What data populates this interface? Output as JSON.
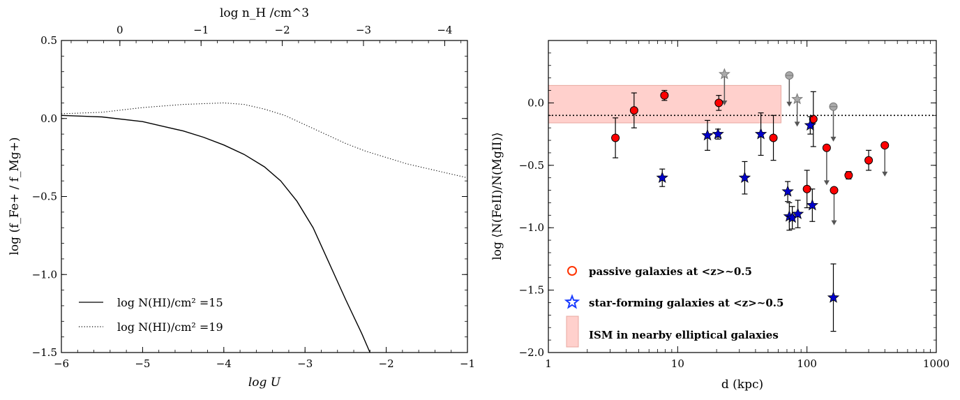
{
  "chart_data": [
    {
      "type": "line",
      "xlabel": "log U",
      "ylabel": "log (f_Fe+ / f_Mg+)",
      "top_xlabel": "log n_H /cm^3",
      "xlim": [
        -6,
        -1
      ],
      "ylim": [
        -1.5,
        0.5
      ],
      "xticks": [
        "−6",
        "−5",
        "−4",
        "−3",
        "−2",
        "−1"
      ],
      "yticks": [
        "−1.5",
        "−1.0",
        "−0.5",
        "0.0",
        "0.5"
      ],
      "top_xticks": [
        {
          "label": "0",
          "at": -5.28
        },
        {
          "label": "−1",
          "at": -4.28
        },
        {
          "label": "−2",
          "at": -3.28
        },
        {
          "label": "−3",
          "at": -2.28
        },
        {
          "label": "−4",
          "at": -1.28
        }
      ],
      "legend_position": "lower-left",
      "series": [
        {
          "name": "log N(HI)/cm² =15",
          "style": "solid",
          "x": [
            -6.0,
            -5.5,
            -5.0,
            -4.75,
            -4.5,
            -4.25,
            -4.0,
            -3.75,
            -3.5,
            -3.3,
            -3.1,
            -2.9,
            -2.7,
            -2.5,
            -2.3,
            -2.2
          ],
          "y": [
            0.02,
            0.01,
            -0.02,
            -0.05,
            -0.08,
            -0.12,
            -0.17,
            -0.23,
            -0.31,
            -0.4,
            -0.53,
            -0.7,
            -0.93,
            -1.16,
            -1.38,
            -1.5
          ]
        },
        {
          "name": "log N(HI)/cm² =19",
          "style": "dotted",
          "x": [
            -6.0,
            -5.5,
            -5.0,
            -4.5,
            -4.0,
            -3.75,
            -3.5,
            -3.25,
            -3.0,
            -2.75,
            -2.5,
            -2.25,
            -2.0,
            -1.75,
            -1.5,
            -1.25,
            -1.0
          ],
          "y": [
            0.03,
            0.04,
            0.07,
            0.09,
            0.1,
            0.09,
            0.06,
            0.02,
            -0.04,
            -0.1,
            -0.16,
            -0.21,
            -0.25,
            -0.29,
            -0.32,
            -0.35,
            -0.38
          ]
        }
      ]
    },
    {
      "type": "scatter",
      "xlabel": "d (kpc)",
      "ylabel": "log ⟨N(FeII)/N(MgII)⟩",
      "x_scale": "log",
      "xlim": [
        1,
        1000
      ],
      "ylim": [
        -2.0,
        0.5
      ],
      "xticks": [
        "1",
        "10",
        "100",
        "1000"
      ],
      "yticks": [
        "−2.0",
        "−1.5",
        "−1.0",
        "−0.5",
        "0.0"
      ],
      "reference_line_y": -0.1,
      "ism_band": {
        "x": [
          1,
          63
        ],
        "y": [
          -0.16,
          0.14
        ]
      },
      "legend_position": "lower-left",
      "legend": [
        {
          "key": "passive",
          "label": "passive galaxies at <z>~0.5"
        },
        {
          "key": "sf",
          "label": "star-forming galaxies at <z>~0.5"
        },
        {
          "key": "ism",
          "label": "ISM in nearby elliptical galaxies"
        }
      ],
      "colors": {
        "passive": "#ff0000",
        "sf": "#0000cc",
        "upper": "#999999",
        "band": "#ffd0cc"
      },
      "passive_points": [
        {
          "x": 3.3,
          "y": -0.28,
          "err": [
            0.16,
            0.16
          ]
        },
        {
          "x": 4.6,
          "y": -0.06,
          "err": [
            0.14,
            0.14
          ]
        },
        {
          "x": 7.9,
          "y": 0.06,
          "err": [
            0.04,
            0.04
          ]
        },
        {
          "x": 20.8,
          "y": 0.0,
          "err": [
            0.06,
            0.06
          ]
        },
        {
          "x": 55,
          "y": -0.28,
          "err": [
            0.18,
            0.18
          ]
        },
        {
          "x": 100,
          "y": -0.69,
          "err": [
            0.15,
            0.15
          ]
        },
        {
          "x": 112,
          "y": -0.13,
          "err": [
            0.22,
            0.22
          ]
        },
        {
          "x": 210,
          "y": -0.58,
          "err": [
            0.03,
            0.03
          ]
        },
        {
          "x": 300,
          "y": -0.46,
          "err": [
            0.08,
            0.08
          ]
        }
      ],
      "passive_upper_limits": [
        {
          "x": 142,
          "y": -0.36,
          "len": 0.3
        },
        {
          "x": 162,
          "y": -0.7,
          "len": 0.28
        },
        {
          "x": 400,
          "y": -0.34,
          "len": 0.25
        }
      ],
      "sf_points": [
        {
          "x": 7.6,
          "y": -0.6,
          "err": [
            0.07,
            0.07
          ]
        },
        {
          "x": 17,
          "y": -0.26,
          "err": [
            0.12,
            0.12
          ]
        },
        {
          "x": 20.5,
          "y": -0.25,
          "err": [
            0.04,
            0.04
          ]
        },
        {
          "x": 33,
          "y": -0.6,
          "err": [
            0.13,
            0.13
          ]
        },
        {
          "x": 44,
          "y": -0.25,
          "err": [
            0.17,
            0.17
          ]
        },
        {
          "x": 71,
          "y": -0.71,
          "err": [
            0.08,
            0.08
          ]
        },
        {
          "x": 73,
          "y": -0.91,
          "err": [
            0.11,
            0.11
          ]
        },
        {
          "x": 77,
          "y": -0.92,
          "err": [
            0.09,
            0.09
          ]
        },
        {
          "x": 85,
          "y": -0.89,
          "err": [
            0.11,
            0.11
          ]
        },
        {
          "x": 106,
          "y": -0.18,
          "err": [
            0.07,
            0.07
          ]
        },
        {
          "x": 110,
          "y": -0.82,
          "err": [
            0.13,
            0.13
          ]
        },
        {
          "x": 160,
          "y": -1.56,
          "err": [
            0.27,
            0.27
          ]
        }
      ],
      "gray_upper_limits": [
        {
          "x": 23,
          "y": 0.23,
          "len": 0.25,
          "marker": "star"
        },
        {
          "x": 73,
          "y": 0.22,
          "len": 0.25,
          "marker": "circle"
        },
        {
          "x": 84,
          "y": 0.03,
          "len": 0.22,
          "marker": "star"
        },
        {
          "x": 160,
          "y": -0.03,
          "len": 0.28,
          "marker": "circle"
        }
      ]
    }
  ]
}
